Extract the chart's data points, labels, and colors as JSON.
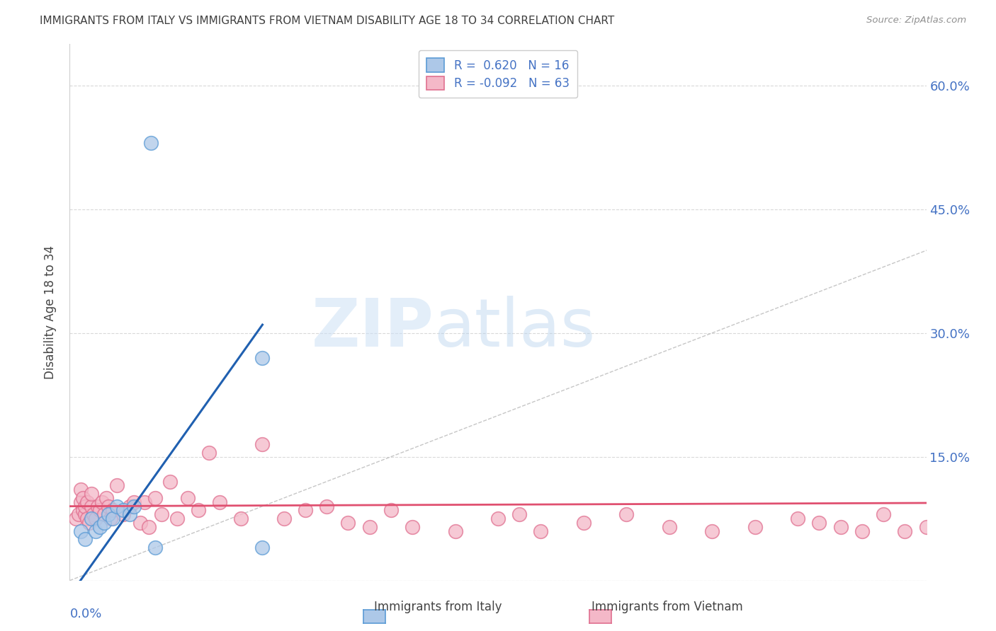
{
  "title": "IMMIGRANTS FROM ITALY VS IMMIGRANTS FROM VIETNAM DISABILITY AGE 18 TO 34 CORRELATION CHART",
  "source": "Source: ZipAtlas.com",
  "ylabel": "Disability Age 18 to 34",
  "x_min": 0.0,
  "x_max": 0.4,
  "y_min": 0.0,
  "y_max": 0.65,
  "y_ticks": [
    0.0,
    0.15,
    0.3,
    0.45,
    0.6
  ],
  "y_tick_labels_right": [
    "",
    "15.0%",
    "30.0%",
    "45.0%",
    "60.0%"
  ],
  "italy_color": "#adc8e8",
  "italy_edge_color": "#5b9bd5",
  "vietnam_color": "#f4b8c8",
  "vietnam_edge_color": "#e07090",
  "italy_line_color": "#2060b0",
  "vietnam_line_color": "#e05070",
  "diagonal_color": "#b8b8b8",
  "R_italy": 0.62,
  "N_italy": 16,
  "R_vietnam": -0.092,
  "N_vietnam": 63,
  "italy_x": [
    0.005,
    0.007,
    0.01,
    0.012,
    0.014,
    0.016,
    0.018,
    0.02,
    0.022,
    0.025,
    0.028,
    0.03,
    0.038,
    0.04,
    0.09,
    0.09
  ],
  "italy_y": [
    0.06,
    0.05,
    0.075,
    0.06,
    0.065,
    0.07,
    0.08,
    0.075,
    0.09,
    0.085,
    0.08,
    0.09,
    0.53,
    0.04,
    0.27,
    0.04
  ],
  "vietnam_x": [
    0.003,
    0.004,
    0.005,
    0.005,
    0.006,
    0.006,
    0.007,
    0.007,
    0.008,
    0.008,
    0.009,
    0.01,
    0.01,
    0.011,
    0.012,
    0.013,
    0.014,
    0.015,
    0.016,
    0.017,
    0.018,
    0.019,
    0.02,
    0.022,
    0.025,
    0.028,
    0.03,
    0.033,
    0.035,
    0.037,
    0.04,
    0.043,
    0.047,
    0.05,
    0.055,
    0.06,
    0.065,
    0.07,
    0.08,
    0.09,
    0.1,
    0.11,
    0.12,
    0.13,
    0.14,
    0.15,
    0.16,
    0.18,
    0.2,
    0.21,
    0.22,
    0.24,
    0.26,
    0.28,
    0.3,
    0.32,
    0.34,
    0.35,
    0.36,
    0.37,
    0.38,
    0.39,
    0.4
  ],
  "vietnam_y": [
    0.075,
    0.08,
    0.095,
    0.11,
    0.085,
    0.1,
    0.08,
    0.09,
    0.075,
    0.095,
    0.07,
    0.09,
    0.105,
    0.08,
    0.075,
    0.09,
    0.085,
    0.095,
    0.08,
    0.1,
    0.09,
    0.075,
    0.085,
    0.115,
    0.08,
    0.09,
    0.095,
    0.07,
    0.095,
    0.065,
    0.1,
    0.08,
    0.12,
    0.075,
    0.1,
    0.085,
    0.155,
    0.095,
    0.075,
    0.165,
    0.075,
    0.085,
    0.09,
    0.07,
    0.065,
    0.085,
    0.065,
    0.06,
    0.075,
    0.08,
    0.06,
    0.07,
    0.08,
    0.065,
    0.06,
    0.065,
    0.075,
    0.07,
    0.065,
    0.06,
    0.08,
    0.06,
    0.065
  ],
  "italy_line_x0": 0.005,
  "italy_line_y0": 0.0,
  "italy_line_x1": 0.09,
  "italy_line_y1": 0.31,
  "vietnam_line_x0": 0.0,
  "vietnam_line_y0": 0.09,
  "vietnam_line_x1": 0.4,
  "vietnam_line_y1": 0.094,
  "watermark_zip": "ZIP",
  "watermark_atlas": "atlas",
  "background_color": "#ffffff",
  "grid_color": "#d0d0d0",
  "legend_italy_label": "R =  0.620   N = 16",
  "legend_vietnam_label": "R = -0.092   N = 63",
  "axis_label_color": "#4472c4",
  "title_color": "#404040"
}
